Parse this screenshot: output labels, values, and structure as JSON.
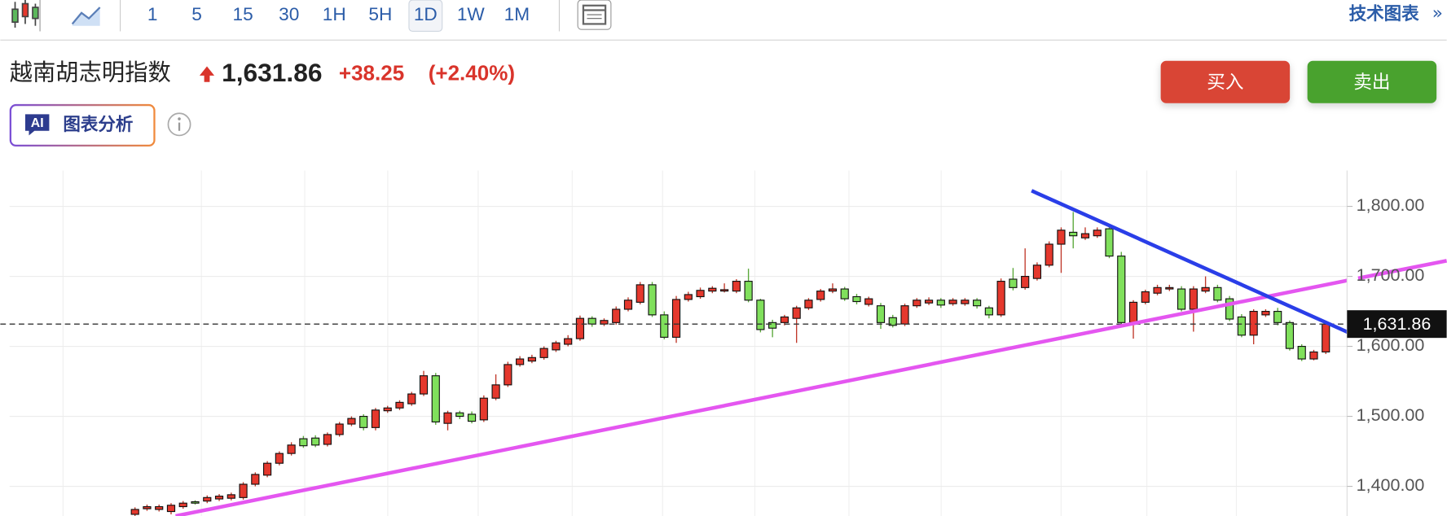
{
  "toolbar": {
    "intervals": [
      "1",
      "5",
      "15",
      "30",
      "1H",
      "5H",
      "1D",
      "1W",
      "1M"
    ],
    "selected_interval": "1D",
    "tech_chart_link": "技术图表",
    "more": "»"
  },
  "header": {
    "title": "越南胡志明指数",
    "price": "1,631.86",
    "change": "+38.25",
    "change_percent": "(+2.40%)",
    "buy_button": "买入",
    "sell_button": "卖出",
    "ai_badge": "AI",
    "ai_button": "图表分析"
  },
  "chart_data": {
    "type": "candlestick",
    "up_color": "#e5382d",
    "down_color": "#80e05c",
    "open": [
      1360,
      1368,
      1367,
      1364,
      1371,
      1378,
      1379,
      1382,
      1383,
      1384,
      1403,
      1416,
      1433,
      1447,
      1468,
      1469,
      1460,
      1474,
      1489,
      1500,
      1484,
      1508,
      1512,
      1518,
      1532,
      1558,
      1490,
      1505,
      1503,
      1495,
      1526,
      1545,
      1574,
      1579,
      1584,
      1595,
      1603,
      1611,
      1640,
      1632,
      1634,
      1653,
      1663,
      1688,
      1645,
      1613,
      1667,
      1671,
      1679,
      1680,
      1679,
      1693,
      1666,
      1634,
      1634,
      1640,
      1655,
      1667,
      1679,
      1682,
      1671,
      1660,
      1658,
      1641,
      1632,
      1658,
      1662,
      1666,
      1661,
      1661,
      1666,
      1655,
      1645,
      1696,
      1684,
      1697,
      1716,
      1746,
      1763,
      1755,
      1758,
      1768,
      1729,
      1634,
      1663,
      1676,
      1682,
      1682,
      1653,
      1679,
      1684,
      1668,
      1642,
      1616,
      1645,
      1650,
      1634,
      1600,
      1582,
      1592
    ],
    "high": [
      1370,
      1374,
      1374,
      1376,
      1379,
      1380,
      1387,
      1389,
      1391,
      1406,
      1420,
      1436,
      1450,
      1463,
      1472,
      1473,
      1477,
      1492,
      1500,
      1503,
      1512,
      1515,
      1523,
      1535,
      1565,
      1562,
      1508,
      1508,
      1507,
      1530,
      1560,
      1578,
      1586,
      1588,
      1600,
      1608,
      1616,
      1644,
      1643,
      1640,
      1657,
      1670,
      1692,
      1692,
      1650,
      1672,
      1678,
      1684,
      1686,
      1690,
      1696,
      1711,
      1668,
      1638,
      1645,
      1658,
      1669,
      1682,
      1690,
      1685,
      1675,
      1671,
      1662,
      1645,
      1661,
      1669,
      1670,
      1669,
      1669,
      1669,
      1669,
      1658,
      1697,
      1712,
      1740,
      1720,
      1750,
      1770,
      1792,
      1770,
      1770,
      1773,
      1735,
      1666,
      1681,
      1688,
      1688,
      1686,
      1686,
      1700,
      1688,
      1672,
      1646,
      1653,
      1653,
      1655,
      1637,
      1603,
      1595,
      1636
    ],
    "low": [
      1355,
      1365,
      1364,
      1360,
      1368,
      1374,
      1376,
      1379,
      1380,
      1381,
      1400,
      1413,
      1430,
      1444,
      1455,
      1456,
      1457,
      1471,
      1486,
      1480,
      1480,
      1505,
      1509,
      1515,
      1529,
      1488,
      1480,
      1496,
      1490,
      1492,
      1523,
      1542,
      1571,
      1576,
      1581,
      1592,
      1600,
      1608,
      1628,
      1629,
      1631,
      1650,
      1660,
      1642,
      1610,
      1605,
      1664,
      1668,
      1676,
      1677,
      1676,
      1663,
      1620,
      1613,
      1630,
      1605,
      1652,
      1664,
      1676,
      1665,
      1660,
      1657,
      1625,
      1627,
      1629,
      1655,
      1659,
      1655,
      1658,
      1658,
      1654,
      1640,
      1642,
      1680,
      1681,
      1694,
      1713,
      1705,
      1740,
      1752,
      1755,
      1726,
      1630,
      1611,
      1660,
      1673,
      1679,
      1650,
      1621,
      1676,
      1663,
      1636,
      1613,
      1603,
      1642,
      1630,
      1594,
      1579,
      1580,
      1589
    ],
    "close": [
      1367,
      1371,
      1371,
      1373,
      1376,
      1376,
      1384,
      1386,
      1388,
      1403,
      1417,
      1433,
      1447,
      1459,
      1458,
      1459,
      1474,
      1489,
      1497,
      1484,
      1509,
      1512,
      1520,
      1532,
      1558,
      1492,
      1505,
      1500,
      1493,
      1526,
      1545,
      1574,
      1582,
      1584,
      1597,
      1605,
      1611,
      1640,
      1632,
      1637,
      1653,
      1666,
      1688,
      1645,
      1613,
      1667,
      1674,
      1680,
      1683,
      1681,
      1693,
      1666,
      1624,
      1626,
      1642,
      1655,
      1666,
      1679,
      1682,
      1668,
      1664,
      1668,
      1634,
      1630,
      1658,
      1666,
      1666,
      1659,
      1666,
      1666,
      1658,
      1645,
      1693,
      1684,
      1700,
      1716,
      1746,
      1766,
      1758,
      1761,
      1766,
      1729,
      1634,
      1663,
      1678,
      1684,
      1684,
      1653,
      1682,
      1684,
      1666,
      1639,
      1616,
      1650,
      1650,
      1634,
      1597,
      1582,
      1592,
      1631.86
    ],
    "last_price": {
      "value": 1631.86,
      "label": "1,631.86"
    },
    "ylim": [
      1360,
      1850
    ],
    "yticks": [
      {
        "value": 1400,
        "label": "1,400.00"
      },
      {
        "value": 1500,
        "label": "1,500.00"
      },
      {
        "value": 1600,
        "label": "1,600.00"
      },
      {
        "value": 1700,
        "label": "1,700.00"
      },
      {
        "value": 1800,
        "label": "1,800.00"
      }
    ],
    "grid": true
  }
}
